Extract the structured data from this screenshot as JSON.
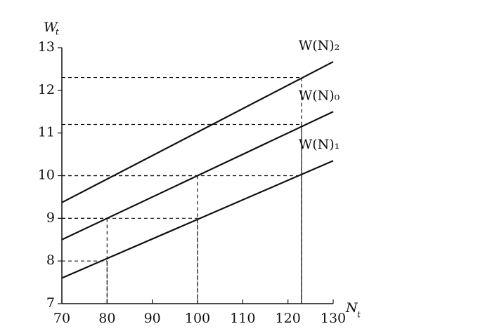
{
  "chart_data": {
    "type": "line",
    "xlabel": "N",
    "xlabel_sub": "t",
    "ylabel": "W",
    "ylabel_sub": "t",
    "x": [
      70,
      130
    ],
    "series": [
      {
        "name": "W(N)₂",
        "color": "#111111",
        "values": [
          9.37,
          12.67
        ]
      },
      {
        "name": "W(N)₀",
        "color": "#111111",
        "values": [
          8.5,
          11.5
        ]
      },
      {
        "name": "W(N)₁",
        "color": "#111111",
        "values": [
          7.6,
          10.35
        ]
      }
    ],
    "reference_points": [
      {
        "x": 80,
        "y": 9
      },
      {
        "x": 80,
        "y": 8
      },
      {
        "x": 100,
        "y": 10
      },
      {
        "x": 100,
        "y": 9
      },
      {
        "x": 123,
        "y": 12.3
      },
      {
        "x": 123,
        "y": 11.2
      },
      {
        "x": 123,
        "y": 10
      }
    ],
    "xlim": [
      70,
      130
    ],
    "ylim": [
      7,
      13
    ],
    "xticks": [
      70,
      80,
      90,
      100,
      110,
      120,
      130
    ],
    "yticks": [
      7,
      8,
      9,
      10,
      11,
      12,
      13
    ],
    "grid": false
  }
}
